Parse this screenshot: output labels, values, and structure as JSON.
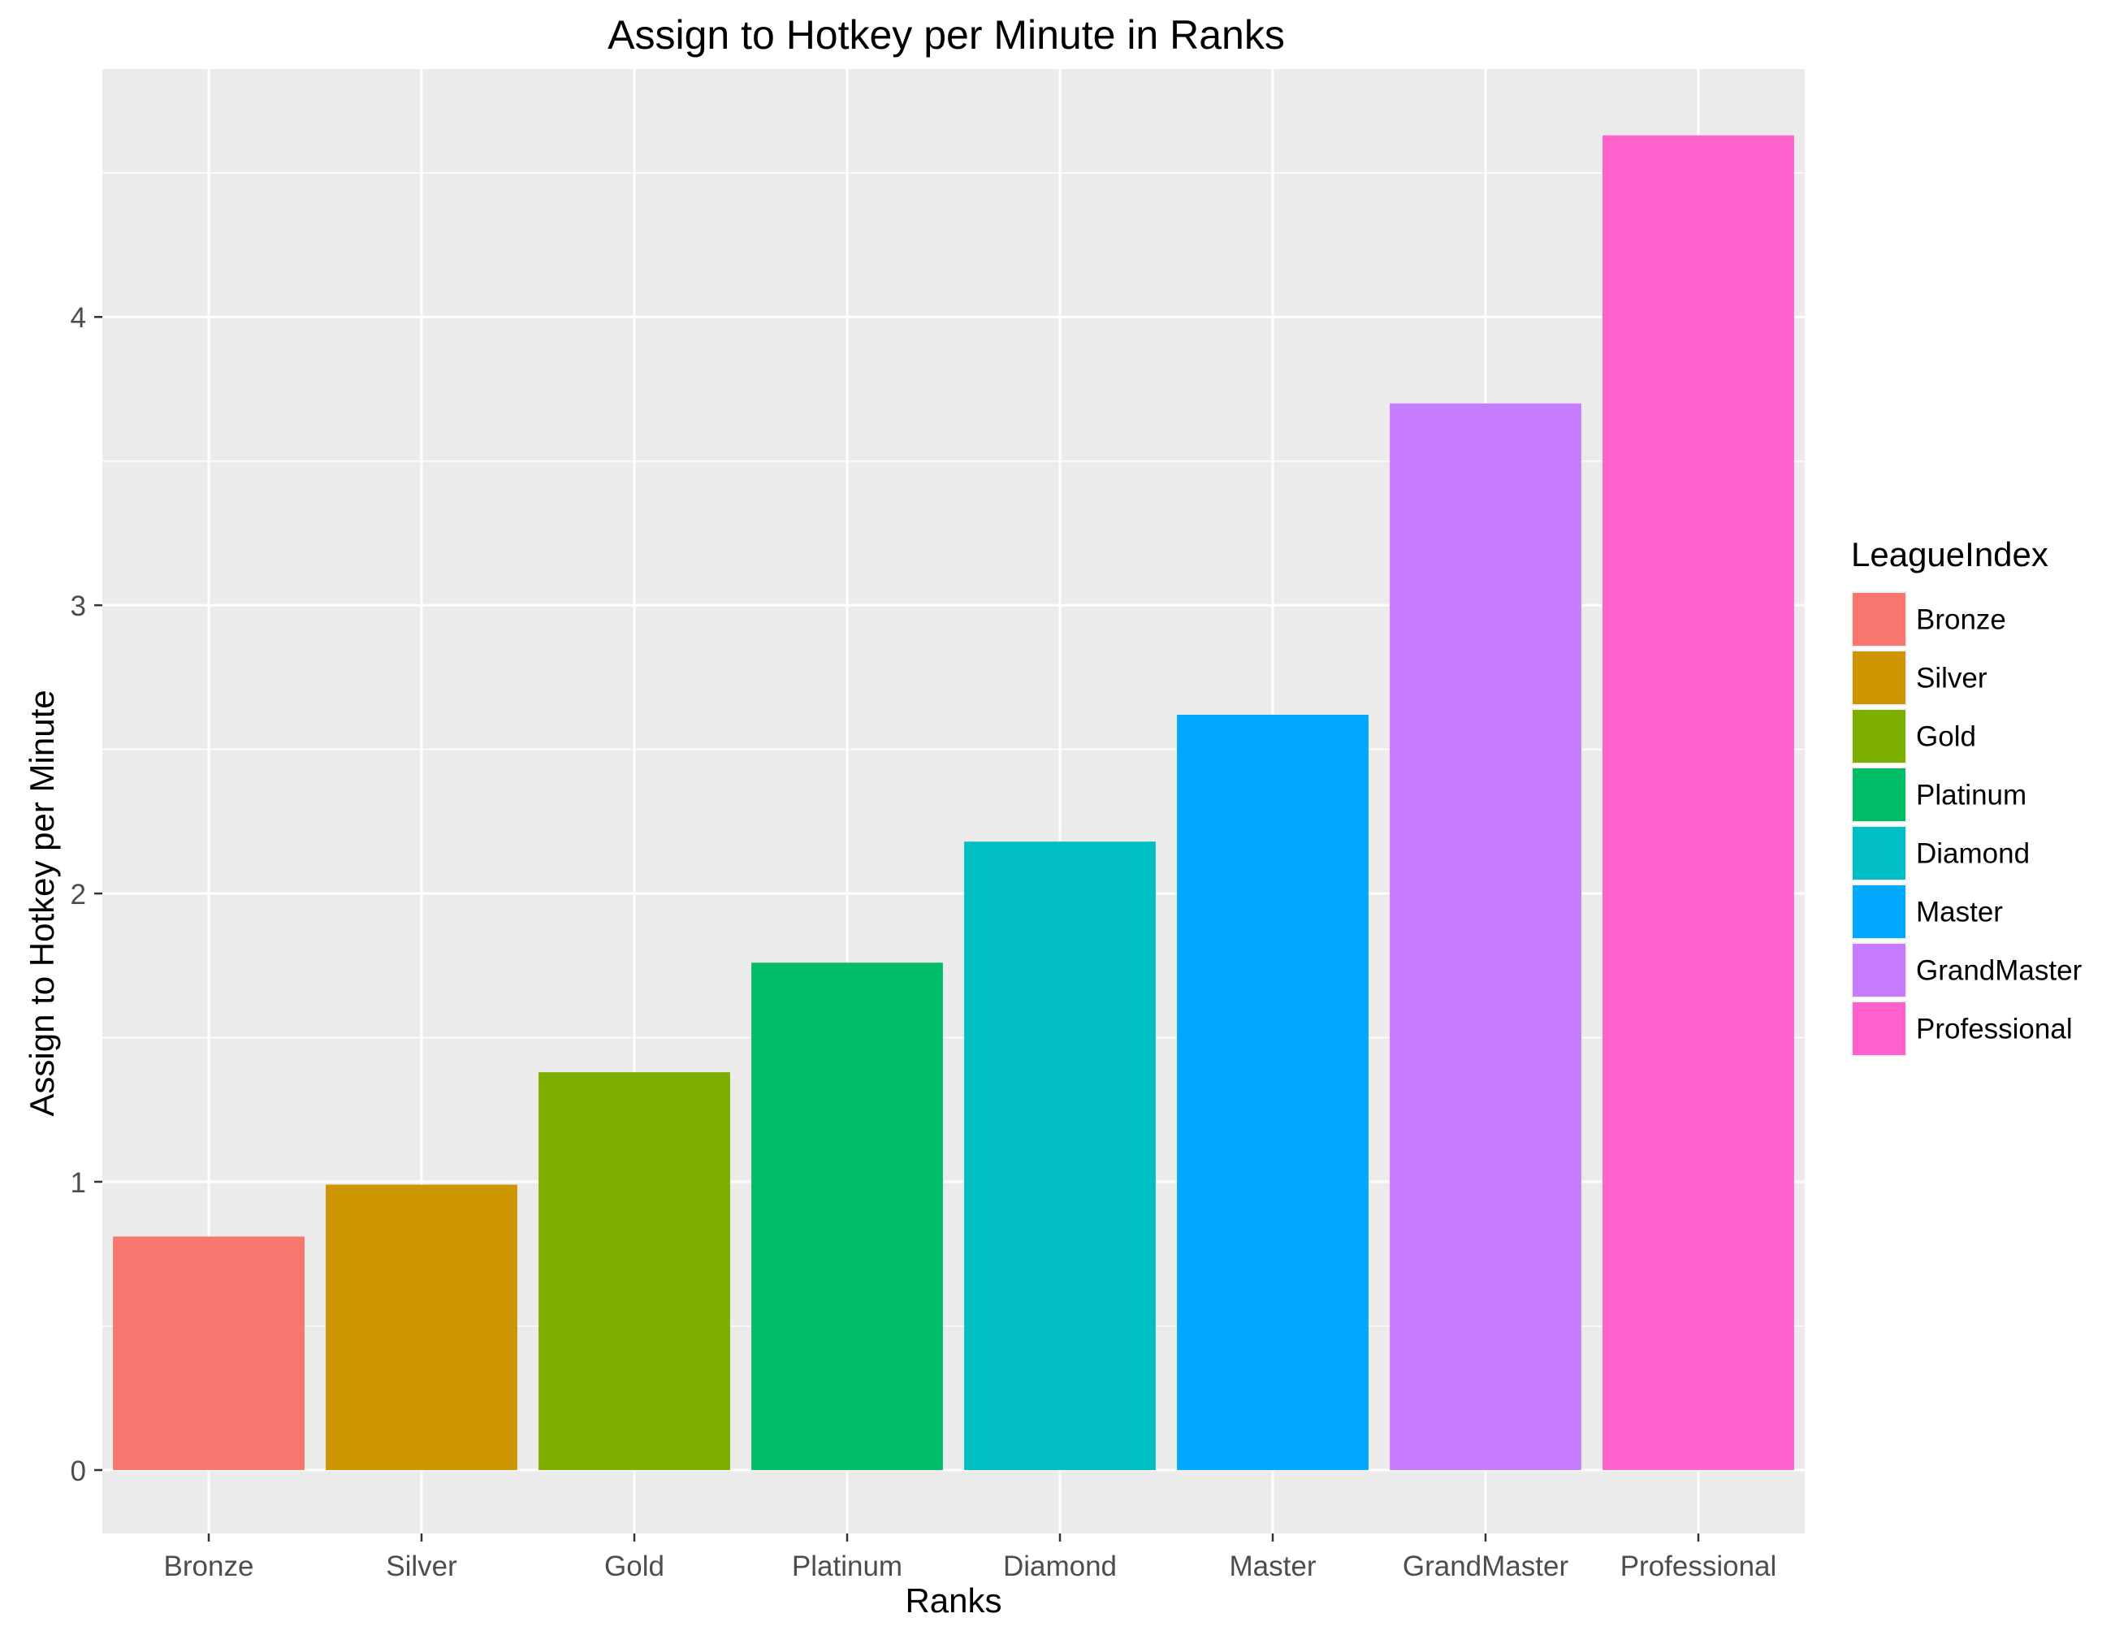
{
  "chart_data": {
    "type": "bar",
    "title": "Assign to Hotkey per Minute in Ranks",
    "xlabel": "Ranks",
    "ylabel": "Assign to Hotkey per Minute",
    "categories": [
      "Bronze",
      "Silver",
      "Gold",
      "Platinum",
      "Diamond",
      "Master",
      "GrandMaster",
      "Professional"
    ],
    "values": [
      0.81,
      0.99,
      1.38,
      1.76,
      2.18,
      2.62,
      3.7,
      4.63
    ],
    "colors": [
      "#F8766D",
      "#CD9600",
      "#7CAE00",
      "#00BE67",
      "#00BFC4",
      "#00A9FF",
      "#C77CFF",
      "#FF61CC"
    ],
    "ylim": [
      -0.22,
      4.86
    ],
    "yticks": [
      0,
      1,
      2,
      3,
      4
    ],
    "grid": true,
    "panel_background": "#EBEBEB",
    "legend": {
      "title": "LeagueIndex",
      "position": "right",
      "entries": [
        "Bronze",
        "Silver",
        "Gold",
        "Platinum",
        "Diamond",
        "Master",
        "GrandMaster",
        "Professional"
      ]
    }
  }
}
